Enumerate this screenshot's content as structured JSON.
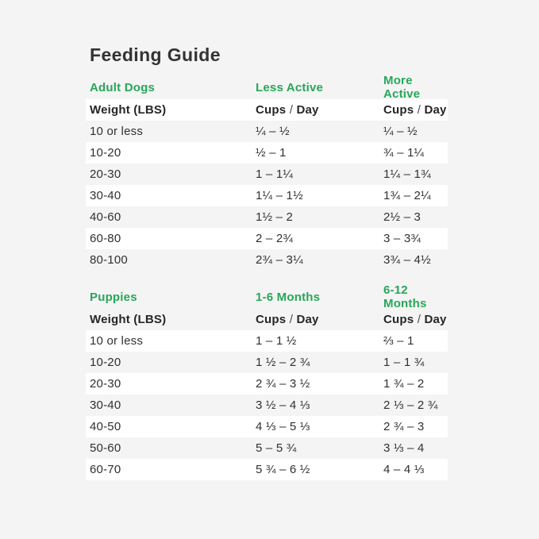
{
  "page": {
    "title": "Feeding Guide",
    "colors": {
      "background": "#f3f4f3",
      "stripe": "#ffffff",
      "accent_green": "#28a65a",
      "heading": "#333333",
      "text": "#2e2e2e"
    }
  },
  "shared": {
    "weight_header": "Weight (LBS)",
    "cups_word": "Cups",
    "slash": "/",
    "day_word": "Day"
  },
  "chart_data": [
    {
      "type": "table",
      "name": "adult-dogs",
      "section_label": "Adult Dogs",
      "col2_label": "Less Active",
      "col3_label": "More Active",
      "col_headers": {
        "col1": "Weight (LBS)",
        "col2": "Cups / Day",
        "col3": "Cups / Day"
      },
      "rows": [
        {
          "col1": "10 or less",
          "col2": "¼ – ½",
          "col3": "¼ – ½"
        },
        {
          "col1": "10-20",
          "col2": "½ – 1",
          "col3": "¾ – 1¼"
        },
        {
          "col1": "20-30",
          "col2": "1 – 1¼",
          "col3": "1¼ – 1¾"
        },
        {
          "col1": "30-40",
          "col2": "1¼ – 1½",
          "col3": "1¾ – 2¼"
        },
        {
          "col1": "40-60",
          "col2": "1½ – 2",
          "col3": "2½ – 3"
        },
        {
          "col1": "60-80",
          "col2": "2 – 2¾",
          "col3": "3 – 3¾"
        },
        {
          "col1": "80-100",
          "col2": "2¾ – 3¼",
          "col3": "3¾ – 4½"
        }
      ]
    },
    {
      "type": "table",
      "name": "puppies",
      "section_label": "Puppies",
      "col2_label": "1-6 Months",
      "col3_label": "6-12 Months",
      "col_headers": {
        "col1": "Weight (LBS)",
        "col2": "Cups / Day",
        "col3": "Cups / Day"
      },
      "rows": [
        {
          "col1": "10 or less",
          "col2": "1 – 1 ½",
          "col3": "⅔ – 1"
        },
        {
          "col1": "10-20",
          "col2": "1 ½ – 2 ¾",
          "col3": "1 – 1 ¾"
        },
        {
          "col1": "20-30",
          "col2": "2 ¾ – 3 ½",
          "col3": "1 ¾ – 2"
        },
        {
          "col1": "30-40",
          "col2": "3 ½ – 4 ⅓",
          "col3": "2 ⅓ – 2 ¾"
        },
        {
          "col1": "40-50",
          "col2": "4 ⅓ – 5 ⅓",
          "col3": "2 ¾ – 3"
        },
        {
          "col1": "50-60",
          "col2": "5 – 5 ¾",
          "col3": "3 ⅓ – 4"
        },
        {
          "col1": "60-70",
          "col2": "5 ¾ – 6 ½",
          "col3": "4 – 4 ⅓"
        }
      ]
    }
  ]
}
